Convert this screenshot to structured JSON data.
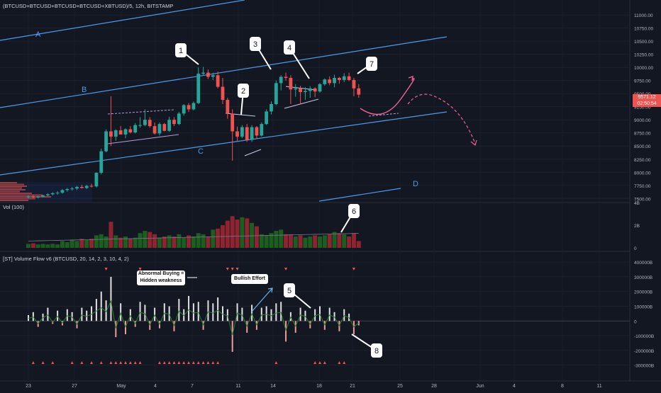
{
  "header": {
    "symbol_line": "(BTCUSD+BTCUSD+BTCUSD+BTCUSD+XBTUSD)/5, 12h, BITSTAMP"
  },
  "price_pane": {
    "y_ticks": [
      "11000.00",
      "10750.00",
      "10500.00",
      "10250.00",
      "10000.00",
      "9750.00",
      "9500.00",
      "9250.00",
      "9000.00",
      "8750.00",
      "8500.00",
      "8250.00",
      "8000.00",
      "7750.00",
      "7500.00"
    ],
    "last_price_badge_top": "9571.12",
    "last_price_badge_bottom": "02:50:54",
    "channel_labels": [
      "A",
      "B",
      "C",
      "D"
    ],
    "callouts": [
      "1",
      "2",
      "3",
      "4",
      "7"
    ]
  },
  "volume_pane": {
    "title": "Vol (100)",
    "y_ticks": [
      "4B",
      "2B",
      "0"
    ],
    "callout": "6"
  },
  "flow_pane": {
    "title": "[ST] Volume Flow v6 (BTCUSD, 20, 14, 2, 3, 10, 4, 2)",
    "y_ticks": [
      "400000B",
      "300000B",
      "200000B",
      "100000B",
      "0",
      "-100000B",
      "-200000B",
      "-300000B"
    ],
    "annotation_abnormal_line1": "Abnormal Buying =",
    "annotation_abnormal_line2": "Hidden weakness",
    "annotation_bullish": "Bullish Effort",
    "callouts": [
      "5",
      "8"
    ]
  },
  "x_axis": {
    "labels": [
      "23",
      "27",
      "May",
      "4",
      "7",
      "11",
      "14",
      "18",
      "21",
      "25",
      "28",
      "Jun",
      "4",
      "8",
      "11"
    ]
  },
  "chart_data": {
    "type": "candlestick",
    "interval": "12h",
    "price_axis_range": [
      7450,
      11150
    ],
    "volume_axis_range": [
      0,
      4
    ],
    "flow_axis_range": [
      -350000,
      420000
    ],
    "ohlc": [
      [
        7520,
        7560,
        7500,
        7540
      ],
      [
        7540,
        7560,
        7510,
        7520
      ],
      [
        7520,
        7550,
        7500,
        7535
      ],
      [
        7535,
        7570,
        7520,
        7560
      ],
      [
        7560,
        7600,
        7540,
        7580
      ],
      [
        7580,
        7620,
        7560,
        7600
      ],
      [
        7600,
        7640,
        7570,
        7610
      ],
      [
        7610,
        7680,
        7590,
        7660
      ],
      [
        7660,
        7700,
        7630,
        7680
      ],
      [
        7680,
        7720,
        7650,
        7690
      ],
      [
        7690,
        7740,
        7660,
        7720
      ],
      [
        7720,
        7760,
        7690,
        7700
      ],
      [
        7700,
        7760,
        7680,
        7740
      ],
      [
        7740,
        7780,
        7710,
        7730
      ],
      [
        7730,
        8000,
        7710,
        7990
      ],
      [
        7990,
        8450,
        7960,
        8400
      ],
      [
        8400,
        8820,
        8380,
        8780
      ],
      [
        8780,
        9450,
        8500,
        8680
      ],
      [
        8680,
        8820,
        8600,
        8800
      ],
      [
        8800,
        8880,
        8720,
        8720
      ],
      [
        8720,
        8840,
        8650,
        8820
      ],
      [
        8820,
        8880,
        8740,
        8760
      ],
      [
        8760,
        8940,
        8740,
        8900
      ],
      [
        8900,
        9050,
        8850,
        8900
      ],
      [
        8900,
        9200,
        8880,
        9000
      ],
      [
        9000,
        9050,
        8850,
        8880
      ],
      [
        8880,
        8950,
        8720,
        8740
      ],
      [
        8740,
        8950,
        8700,
        8920
      ],
      [
        8920,
        8940,
        8780,
        8790
      ],
      [
        8790,
        9060,
        8770,
        9000
      ],
      [
        9000,
        9050,
        8880,
        8920
      ],
      [
        8920,
        9150,
        8900,
        9120
      ],
      [
        9120,
        9300,
        9080,
        9280
      ],
      [
        9280,
        9320,
        9150,
        9200
      ],
      [
        9200,
        9350,
        9180,
        9320
      ],
      [
        9320,
        10000,
        9300,
        9880
      ],
      [
        9880,
        10010,
        9840,
        9900
      ],
      [
        9900,
        9960,
        9780,
        9820
      ],
      [
        9820,
        9900,
        9760,
        9850
      ],
      [
        9850,
        9920,
        9600,
        9630
      ],
      [
        9630,
        9800,
        9300,
        9380
      ],
      [
        9380,
        9420,
        9020,
        9120
      ],
      [
        9120,
        9200,
        8220,
        8780
      ],
      [
        8780,
        8870,
        8600,
        8680
      ],
      [
        8680,
        8900,
        8650,
        8860
      ],
      [
        8860,
        8920,
        8580,
        8620
      ],
      [
        8620,
        8900,
        8580,
        8860
      ],
      [
        8860,
        8880,
        8640,
        8700
      ],
      [
        8700,
        8950,
        8680,
        8920
      ],
      [
        8920,
        9200,
        8900,
        9160
      ],
      [
        9160,
        9350,
        9100,
        9300
      ],
      [
        9300,
        9750,
        9280,
        9700
      ],
      [
        9700,
        9850,
        9560,
        9820
      ],
      [
        9820,
        9900,
        9750,
        9800
      ],
      [
        9800,
        9850,
        9300,
        9580
      ],
      [
        9580,
        9680,
        9440,
        9600
      ],
      [
        9600,
        9650,
        9300,
        9530
      ],
      [
        9530,
        9620,
        9380,
        9550
      ],
      [
        9550,
        9640,
        9420,
        9600
      ],
      [
        9600,
        9620,
        9430,
        9540
      ],
      [
        9540,
        9700,
        9520,
        9680
      ],
      [
        9680,
        9790,
        9650,
        9770
      ],
      [
        9770,
        9830,
        9660,
        9700
      ],
      [
        9700,
        9860,
        9620,
        9800
      ],
      [
        9800,
        9820,
        9690,
        9760
      ],
      [
        9760,
        9890,
        9720,
        9830
      ],
      [
        9830,
        9900,
        9740,
        9760
      ],
      [
        9760,
        9800,
        9450,
        9600
      ],
      [
        9600,
        9680,
        9420,
        9480
      ]
    ],
    "volume": [
      0.35,
      0.4,
      0.3,
      0.35,
      0.3,
      0.35,
      0.3,
      0.6,
      0.5,
      0.7,
      0.6,
      0.8,
      0.7,
      0.8,
      1.1,
      1.2,
      1.0,
      2.3,
      1.1,
      0.9,
      1.0,
      0.8,
      0.9,
      1.3,
      1.5,
      1.4,
      1.2,
      0.9,
      1.0,
      1.1,
      1.0,
      1.2,
      0.9,
      1.1,
      1.0,
      1.3,
      1.2,
      1.0,
      1.6,
      1.7,
      2.0,
      2.4,
      2.8,
      2.5,
      2.7,
      2.6,
      2.2,
      1.9,
      1.2,
      1.1,
      1.3,
      1.5,
      1.6,
      1.2,
      1.2,
      1.0,
      1.1,
      0.9,
      1.0,
      1.1,
      1.0,
      1.1,
      1.2,
      1.4,
      1.3,
      1.2,
      1.0,
      1.3,
      0.6
    ],
    "flow": [
      40000,
      60000,
      -40000,
      50000,
      90000,
      -20000,
      70000,
      -30000,
      80000,
      60000,
      -50000,
      90000,
      70000,
      100000,
      150000,
      200000,
      140000,
      300000,
      -110000,
      120000,
      -90000,
      80000,
      -40000,
      130000,
      110000,
      -60000,
      90000,
      -50000,
      120000,
      100000,
      -70000,
      150000,
      80000,
      170000,
      120000,
      130000,
      -60000,
      140000,
      120000,
      160000,
      100000,
      80000,
      -210000,
      120000,
      90000,
      -80000,
      110000,
      -60000,
      90000,
      100000,
      80000,
      120000,
      130000,
      -140000,
      60000,
      -80000,
      90000,
      70000,
      -50000,
      80000,
      100000,
      -60000,
      90000,
      60000,
      -70000,
      80000,
      50000,
      -90000,
      -30000
    ]
  }
}
